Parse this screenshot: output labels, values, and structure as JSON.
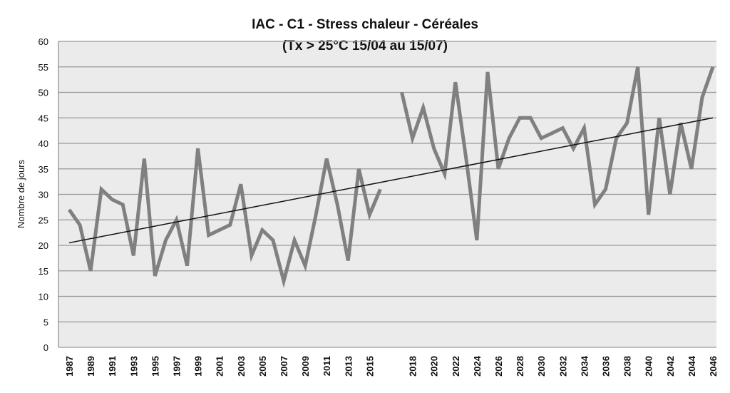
{
  "chart_data": {
    "type": "line",
    "title": "IAC - C1 - Stress chaleur - Céréales",
    "subtitle": "(Tx > 25°C 15/04 au 15/07)",
    "y_label": "Nombre de jours",
    "categories": [
      "1987",
      null,
      "1989",
      null,
      "1991",
      null,
      "1993",
      null,
      "1995",
      null,
      "1997",
      null,
      "1999",
      null,
      "2001",
      null,
      "2003",
      null,
      "2005",
      null,
      "2007",
      null,
      "2009",
      null,
      "2011",
      null,
      "2013",
      null,
      "2015",
      null,
      null,
      null,
      "2018",
      null,
      "2020",
      null,
      "2022",
      null,
      "2024",
      null,
      "2026",
      null,
      "2028",
      null,
      "2030",
      null,
      "2032",
      null,
      "2034",
      null,
      "2036",
      null,
      "2038",
      null,
      "2040",
      null,
      "2042",
      null,
      "2044",
      null,
      "2046"
    ],
    "series": [
      {
        "color": "#808080",
        "values": [
          27,
          24,
          15,
          31,
          29,
          28,
          18,
          37,
          14,
          21,
          25,
          16,
          39,
          22,
          23,
          24,
          32,
          18,
          23,
          21,
          13,
          21,
          16,
          26,
          37,
          28,
          17,
          35,
          26,
          31,
          null,
          50,
          41,
          47,
          39,
          34,
          52,
          37,
          21,
          54,
          35,
          41,
          45,
          45,
          41,
          42,
          43,
          39,
          43,
          28,
          31,
          41,
          44,
          55,
          26,
          45,
          30,
          44,
          35,
          49,
          55
        ]
      }
    ],
    "trendline": [
      20.5,
      45
    ],
    "trendline_color": "#111111",
    "ylim": [
      0,
      60
    ],
    "yticks": [
      0,
      5,
      10,
      15,
      20,
      25,
      30,
      35,
      40,
      45,
      50,
      55,
      60
    ],
    "grid": true
  }
}
